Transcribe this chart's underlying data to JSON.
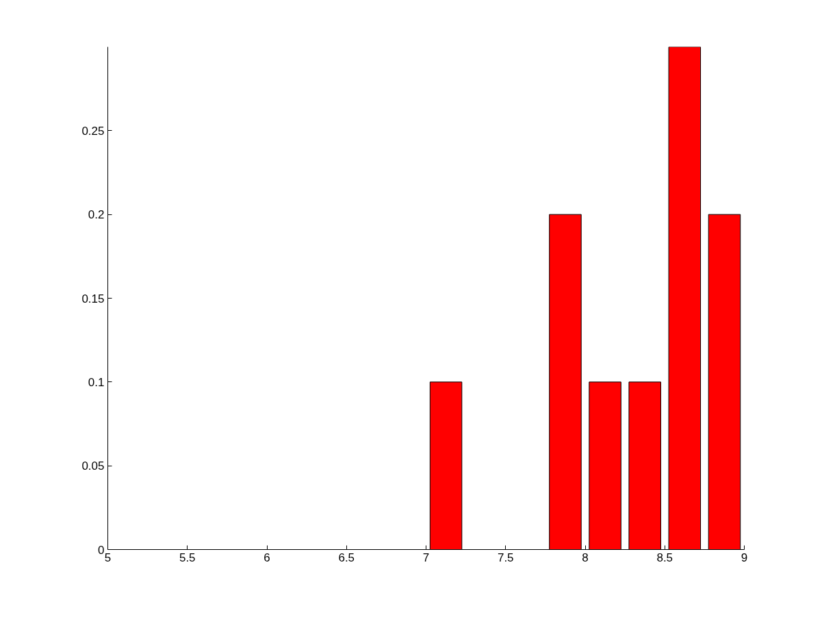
{
  "chart_data": {
    "type": "bar",
    "x": [
      7.125,
      7.875,
      8.125,
      8.375,
      8.625,
      8.875
    ],
    "values": [
      0.1,
      0.2,
      0.1,
      0.1,
      0.3,
      0.2
    ],
    "color": "#ff0000",
    "xlim": [
      5,
      9
    ],
    "xticks": [
      5,
      5.5,
      6,
      6.5,
      7,
      7.5,
      8,
      8.5,
      9
    ],
    "ylim": [
      0,
      0.3
    ],
    "yticks": [
      0,
      0.05,
      0.1,
      0.15,
      0.2,
      0.25
    ],
    "grid": false
  }
}
